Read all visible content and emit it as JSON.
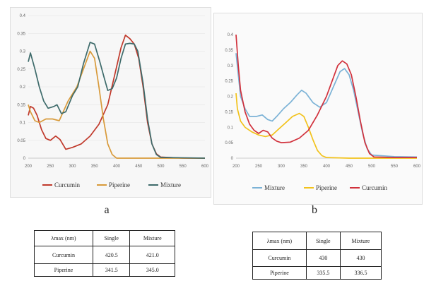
{
  "chart_data": [
    {
      "type": "line",
      "x_ticks": [
        200,
        250,
        300,
        350,
        400,
        450,
        500,
        550,
        600
      ],
      "y_ticks": [
        "0",
        "0.05",
        "0.1",
        "0.15",
        "0.2",
        "0.25",
        "0.3",
        "0.35",
        "0.4"
      ],
      "xlim": [
        200,
        600
      ],
      "ylim": [
        0,
        0.4
      ],
      "grid": true,
      "legend_position": "bottom",
      "series": [
        {
          "name": "Curcumin",
          "color": "#c0392b",
          "points": [
            [
              200,
              0.12
            ],
            [
              205,
              0.145
            ],
            [
              212,
              0.14
            ],
            [
              220,
              0.12
            ],
            [
              230,
              0.08
            ],
            [
              240,
              0.055
            ],
            [
              250,
              0.05
            ],
            [
              262,
              0.062
            ],
            [
              272,
              0.052
            ],
            [
              285,
              0.025
            ],
            [
              300,
              0.03
            ],
            [
              320,
              0.04
            ],
            [
              340,
              0.062
            ],
            [
              360,
              0.095
            ],
            [
              380,
              0.15
            ],
            [
              395,
              0.23
            ],
            [
              410,
              0.31
            ],
            [
              420,
              0.345
            ],
            [
              430,
              0.335
            ],
            [
              440,
              0.32
            ],
            [
              450,
              0.28
            ],
            [
              460,
              0.2
            ],
            [
              470,
              0.1
            ],
            [
              480,
              0.04
            ],
            [
              490,
              0.012
            ],
            [
              500,
              0.003
            ],
            [
              550,
              0.0
            ],
            [
              600,
              0.0
            ]
          ]
        },
        {
          "name": "Piperine",
          "color": "#d89a3a",
          "points": [
            [
              200,
              0.15
            ],
            [
              205,
              0.13
            ],
            [
              215,
              0.105
            ],
            [
              225,
              0.1
            ],
            [
              240,
              0.11
            ],
            [
              255,
              0.11
            ],
            [
              270,
              0.105
            ],
            [
              290,
              0.16
            ],
            [
              310,
              0.2
            ],
            [
              325,
              0.25
            ],
            [
              340,
              0.3
            ],
            [
              350,
              0.28
            ],
            [
              360,
              0.2
            ],
            [
              370,
              0.11
            ],
            [
              380,
              0.04
            ],
            [
              390,
              0.01
            ],
            [
              400,
              0.0
            ],
            [
              450,
              0.0
            ],
            [
              600,
              0.0
            ]
          ]
        },
        {
          "name": "Mixture",
          "color": "#3e6b6b",
          "points": [
            [
              200,
              0.27
            ],
            [
              205,
              0.295
            ],
            [
              215,
              0.25
            ],
            [
              225,
              0.2
            ],
            [
              235,
              0.16
            ],
            [
              245,
              0.14
            ],
            [
              258,
              0.145
            ],
            [
              265,
              0.15
            ],
            [
              275,
              0.125
            ],
            [
              285,
              0.13
            ],
            [
              300,
              0.175
            ],
            [
              312,
              0.2
            ],
            [
              325,
              0.265
            ],
            [
              340,
              0.325
            ],
            [
              350,
              0.32
            ],
            [
              362,
              0.27
            ],
            [
              372,
              0.225
            ],
            [
              380,
              0.19
            ],
            [
              390,
              0.195
            ],
            [
              400,
              0.225
            ],
            [
              410,
              0.28
            ],
            [
              420,
              0.32
            ],
            [
              430,
              0.322
            ],
            [
              440,
              0.32
            ],
            [
              448,
              0.3
            ],
            [
              460,
              0.21
            ],
            [
              470,
              0.11
            ],
            [
              480,
              0.04
            ],
            [
              490,
              0.01
            ],
            [
              500,
              0.002
            ],
            [
              600,
              0.0
            ]
          ]
        }
      ]
    },
    {
      "type": "line",
      "x_ticks": [
        200,
        250,
        300,
        350,
        400,
        450,
        500,
        550,
        600
      ],
      "y_ticks": [
        "0",
        "0.05",
        "0.1",
        "0.15",
        "0.2",
        "0.25",
        "0.3",
        "0.35",
        "0.4"
      ],
      "xlim": [
        200,
        600
      ],
      "ylim": [
        0,
        0.4
      ],
      "grid": false,
      "legend_position": "bottom",
      "series": [
        {
          "name": "Mixture",
          "color": "#7bb2d6",
          "points": [
            [
              200,
              0.34
            ],
            [
              205,
              0.27
            ],
            [
              210,
              0.2
            ],
            [
              220,
              0.16
            ],
            [
              230,
              0.135
            ],
            [
              245,
              0.135
            ],
            [
              258,
              0.14
            ],
            [
              270,
              0.125
            ],
            [
              280,
              0.12
            ],
            [
              290,
              0.135
            ],
            [
              305,
              0.16
            ],
            [
              320,
              0.18
            ],
            [
              335,
              0.205
            ],
            [
              345,
              0.22
            ],
            [
              355,
              0.21
            ],
            [
              370,
              0.18
            ],
            [
              385,
              0.165
            ],
            [
              400,
              0.18
            ],
            [
              415,
              0.23
            ],
            [
              430,
              0.28
            ],
            [
              440,
              0.29
            ],
            [
              450,
              0.27
            ],
            [
              460,
              0.22
            ],
            [
              470,
              0.15
            ],
            [
              480,
              0.08
            ],
            [
              490,
              0.03
            ],
            [
              500,
              0.01
            ],
            [
              550,
              0.005
            ],
            [
              600,
              0.004
            ]
          ]
        },
        {
          "name": "Piperine",
          "color": "#f2c21b",
          "points": [
            [
              200,
              0.21
            ],
            [
              203,
              0.16
            ],
            [
              210,
              0.12
            ],
            [
              220,
              0.1
            ],
            [
              235,
              0.085
            ],
            [
              250,
              0.075
            ],
            [
              265,
              0.07
            ],
            [
              280,
              0.075
            ],
            [
              295,
              0.095
            ],
            [
              310,
              0.115
            ],
            [
              325,
              0.135
            ],
            [
              340,
              0.145
            ],
            [
              350,
              0.135
            ],
            [
              360,
              0.1
            ],
            [
              370,
              0.06
            ],
            [
              380,
              0.025
            ],
            [
              390,
              0.008
            ],
            [
              400,
              0.002
            ],
            [
              450,
              0.0
            ],
            [
              600,
              0.0
            ]
          ]
        },
        {
          "name": "Curcumin",
          "color": "#d1313c",
          "points": [
            [
              200,
              0.4
            ],
            [
              205,
              0.3
            ],
            [
              210,
              0.22
            ],
            [
              220,
              0.15
            ],
            [
              230,
              0.11
            ],
            [
              240,
              0.09
            ],
            [
              250,
              0.08
            ],
            [
              260,
              0.09
            ],
            [
              270,
              0.085
            ],
            [
              280,
              0.065
            ],
            [
              290,
              0.055
            ],
            [
              300,
              0.05
            ],
            [
              320,
              0.052
            ],
            [
              340,
              0.065
            ],
            [
              360,
              0.09
            ],
            [
              380,
              0.14
            ],
            [
              400,
              0.2
            ],
            [
              415,
              0.26
            ],
            [
              425,
              0.3
            ],
            [
              435,
              0.315
            ],
            [
              445,
              0.305
            ],
            [
              455,
              0.27
            ],
            [
              465,
              0.2
            ],
            [
              475,
              0.12
            ],
            [
              485,
              0.05
            ],
            [
              495,
              0.015
            ],
            [
              505,
              0.004
            ],
            [
              550,
              0.002
            ],
            [
              600,
              0.002
            ]
          ]
        }
      ]
    }
  ],
  "panel_labels": [
    "a",
    "b"
  ],
  "tables": [
    {
      "header": [
        "λmax (nm)",
        "Single",
        "Mixture"
      ],
      "rows": [
        [
          "Curcumin",
          "420.5",
          "421.0"
        ],
        [
          "Piperine",
          "341.5",
          "345.0"
        ]
      ]
    },
    {
      "header": [
        "λmax (nm)",
        "Single",
        "Mixture"
      ],
      "rows": [
        [
          "Curcumin",
          "430",
          "430"
        ],
        [
          "Piperine",
          "335.5",
          "336.5"
        ]
      ]
    }
  ]
}
